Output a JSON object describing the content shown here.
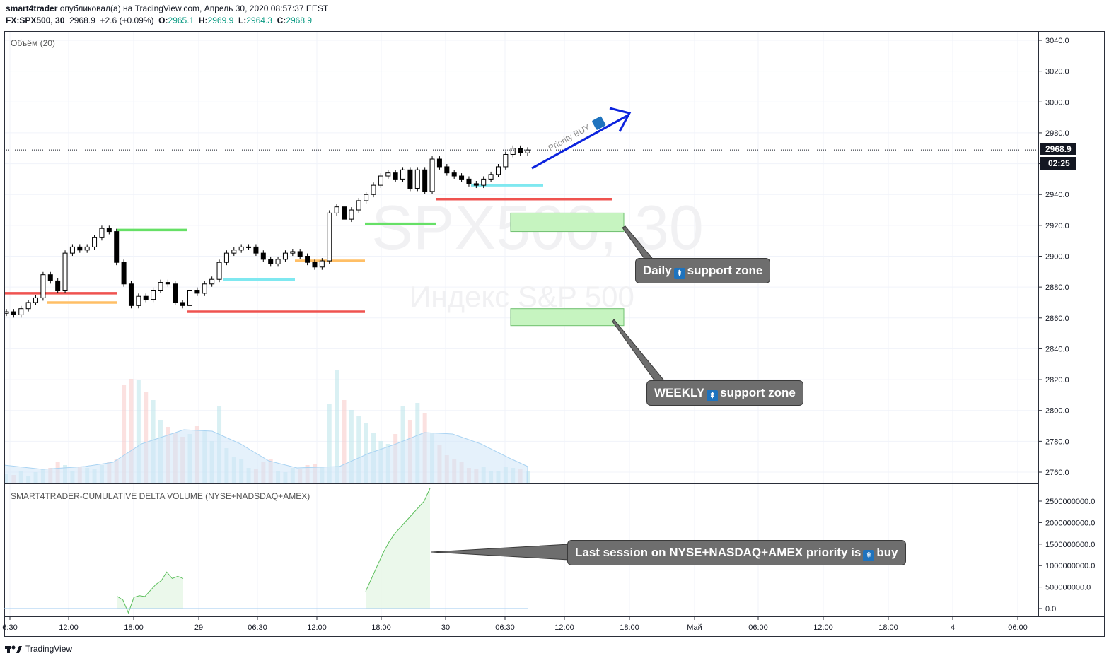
{
  "header": {
    "author": "smart4trader",
    "published": "опубликовал(а) на TradingView.com, Апрель 30, 2020 08:57:37 EEST",
    "symbol": "FX:SPX500, 30",
    "last": "2968.9",
    "change": "+2.6 (+0.09%)",
    "o_label": "O:",
    "o": "2965.1",
    "h_label": "H:",
    "h": "2969.9",
    "l_label": "L:",
    "l": "2964.3",
    "c_label": "C:",
    "c": "2968.9"
  },
  "watermark": {
    "symbol": "SPX500, 30",
    "name": "Индекс S&P 500"
  },
  "volume_label": "Объём (20)",
  "indicator_label": "SMART4TRADER-CUMULATIVE DELTA VOLUME (NYSE+NADSDAQ+AMEX)",
  "price_badge": "2968.9",
  "countdown_badge": "02:25",
  "annotations": {
    "priority_text": "Priority BUY",
    "daily": {
      "pre": "Daily",
      "post": "support zone"
    },
    "weekly": {
      "pre": "WEEKLY",
      "post": "support zone"
    },
    "session": {
      "pre": "Last session on NYSE+NASDAQ+AMEX priority is",
      "post": "buy"
    },
    "up_icon": "⇞"
  },
  "footer": {
    "brand": "TradingView"
  },
  "colors": {
    "up": "#ffffff",
    "down": "#000000",
    "red": "#ef5350",
    "green": "#66e066",
    "cyan": "#7fe8f0",
    "orange": "#ffbf66",
    "arrow": "#0c23de",
    "zone_fill": "#c6f4c0",
    "zone_border": "#6fbf6f",
    "delta": "#5cbf5c"
  },
  "chart_data": [
    {
      "type": "candlestick",
      "title": "FX:SPX500, 30",
      "y_axis": {
        "ticks": [
          3040,
          3020,
          3000,
          2980,
          2960,
          2940,
          2920,
          2900,
          2880,
          2860,
          2840,
          2820,
          2800,
          2780,
          2760
        ],
        "range": [
          2752,
          3046
        ]
      },
      "x_axis": {
        "ticks": [
          "6:30",
          "12:00",
          "18:00",
          "29",
          "06:30",
          "12:00",
          "18:00",
          "30",
          "06:30",
          "12:00",
          "18:00",
          "Май",
          "06:00",
          "12:00",
          "18:00",
          "4",
          "06:00"
        ]
      },
      "ohlc_close_path": [
        2864,
        2862,
        2866,
        2870,
        2873,
        2888,
        2884,
        2878,
        2902,
        2906,
        2904,
        2906,
        2912,
        2918,
        2916,
        2896,
        2882,
        2868,
        2874,
        2872,
        2878,
        2883,
        2882,
        2870,
        2868,
        2878,
        2876,
        2882,
        2885,
        2896,
        2902,
        2904,
        2906,
        2906,
        2902,
        2898,
        2895,
        2898,
        2902,
        2903,
        2900,
        2896,
        2893,
        2897,
        2928,
        2932,
        2924,
        2930,
        2936,
        2940,
        2946,
        2952,
        2954,
        2950,
        2956,
        2944,
        2956,
        2942,
        2963,
        2958,
        2954,
        2952,
        2950,
        2947,
        2946,
        2950,
        2953,
        2958,
        2966,
        2970,
        2967,
        2968.9
      ],
      "last_price": 2968.9,
      "levels": [
        {
          "price": 2876,
          "color": "red"
        },
        {
          "price": 2870,
          "color": "orange"
        },
        {
          "price": 2917,
          "color": "green"
        },
        {
          "price": 2885,
          "color": "cyan"
        },
        {
          "price": 2864,
          "color": "red"
        },
        {
          "price": 2897,
          "color": "orange"
        },
        {
          "price": 2921,
          "color": "green"
        },
        {
          "price": 2937,
          "color": "red"
        },
        {
          "price": 2946,
          "color": "cyan"
        }
      ],
      "support_zones": [
        {
          "label": "Daily support zone",
          "range": [
            2916,
            2928
          ]
        },
        {
          "label": "WEEKLY support zone",
          "range": [
            2855,
            2866
          ]
        }
      ]
    },
    {
      "type": "area",
      "title": "SMART4TRADER-CUMULATIVE DELTA VOLUME (NYSE+NADSDAQ+AMEX)",
      "y_axis": {
        "ticks": [
          "2500000000.0",
          "2000000000.0",
          "1500000000.0",
          "1000000000.0",
          "500000000.0",
          "0.0"
        ],
        "range": [
          -100000000,
          2800000000
        ]
      },
      "series": [
        {
          "values": [
            280000000,
            200000000,
            -100000000,
            260000000,
            300000000,
            280000000,
            420000000,
            560000000,
            650000000,
            850000000,
            700000000,
            750000000,
            700000000
          ]
        },
        {
          "values": [
            400000000,
            700000000,
            1000000000,
            1300000000,
            1550000000,
            1750000000,
            1900000000,
            2050000000,
            2200000000,
            2350000000,
            2500000000,
            2800000000
          ]
        }
      ]
    }
  ]
}
